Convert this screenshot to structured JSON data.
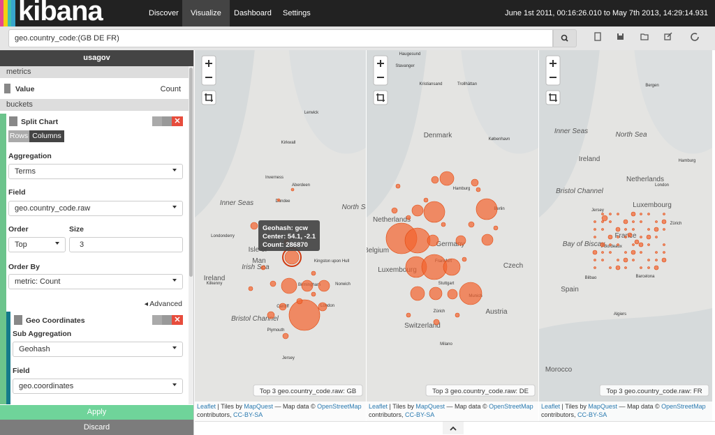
{
  "nav": {
    "brand": "kibana",
    "tabs": [
      "Discover",
      "Visualize",
      "Dashboard",
      "Settings"
    ],
    "time_range": "June 1st 2011, 00:16:26.010 to May 7th 2013, 14:29:14.931"
  },
  "query": "geo.country_code:(GB DE FR)",
  "sidebar": {
    "title": "usagov",
    "metrics_label": "metrics",
    "metric": {
      "name": "Value",
      "agg": "Count"
    },
    "buckets_label": "buckets",
    "split": {
      "title": "Split Chart",
      "rows": "Rows",
      "columns": "Columns",
      "aggregation_label": "Aggregation",
      "aggregation": "Terms",
      "field_label": "Field",
      "field": "geo.country_code.raw",
      "order_label": "Order",
      "order": "Top",
      "size_label": "Size",
      "size": 3,
      "order_by_label": "Order By",
      "order_by": "metric: Count",
      "advanced": "Advanced"
    },
    "geo": {
      "title": "Geo Coordinates",
      "sub_agg_label": "Sub Aggregation",
      "sub_agg": "Geohash",
      "field_label": "Field",
      "field": "geo.coordinates"
    },
    "apply": "Apply",
    "discard": "Discard"
  },
  "maps": [
    {
      "legend": "Top 3 geo.country_code.raw: GB",
      "places": [
        "Lerwick",
        "Kirkwall",
        "Inverness",
        "Aberdeen",
        "Dundee",
        "Inner Seas",
        "North Sea",
        "Londonderry",
        "Isle of",
        "Man",
        "Irish Sea",
        "Ireland",
        "Kilkenny",
        "Kingston upon Hull",
        "Norwich",
        "Birmingham",
        "Cardiff",
        "London",
        "Bristol Channel",
        "Plymouth",
        "Jersey"
      ]
    },
    {
      "legend": "Top 3 geo.country_code.raw: DE",
      "places": [
        "Haugesund",
        "Stavanger",
        "Kristiansand",
        "Trollhättan",
        "Denmark",
        "København",
        "Hamburg",
        "Berlin",
        "Netherlands",
        "Belgium",
        "Germany",
        "Luxembourg",
        "Frankfurt",
        "Czech",
        "Stuttgart",
        "Munich",
        "Zürich",
        "Switzerland",
        "Austria",
        "Milano"
      ]
    },
    {
      "legend": "Top 3 geo.country_code.raw: FR",
      "places": [
        "Bergen",
        "Inner Seas",
        "North Sea",
        "Ireland",
        "Netherlands",
        "Hamburg",
        "Bristol Channel",
        "London",
        "Luxembourg",
        "Jersey",
        "Zürich",
        "France",
        "Bay of Biscay",
        "Bordeaux",
        "Bilbao",
        "Barcelona",
        "Spain",
        "Algiers",
        "Morocco"
      ]
    }
  ],
  "tooltip": {
    "geohash": "Geohash: gcw",
    "center": "Center: 54.1, -2.1",
    "count": "Count: 286870"
  },
  "attribution": {
    "leaflet": "Leaflet",
    "tiles": "| Tiles by",
    "mapquest": "MapQuest",
    "mapdata": "— Map data ©",
    "osm": "OpenStreetMap",
    "contributors": "contributors,",
    "license": "CC-BY-SA"
  }
}
